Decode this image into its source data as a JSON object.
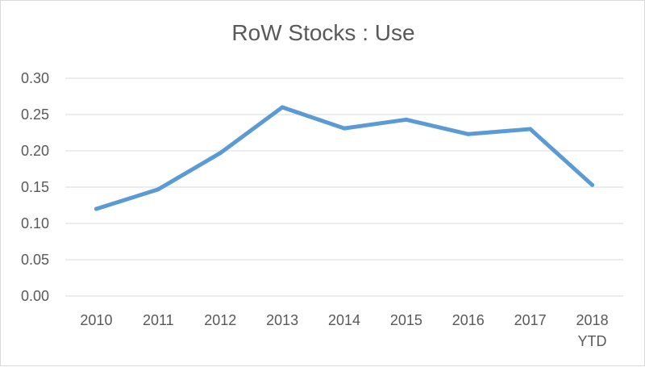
{
  "chart_data": {
    "type": "line",
    "title": "RoW Stocks : Use",
    "categories": [
      "2010",
      "2011",
      "2012",
      "2013",
      "2014",
      "2015",
      "2016",
      "2017",
      "2018\nYTD"
    ],
    "series": [
      {
        "values": [
          0.12,
          0.147,
          0.197,
          0.26,
          0.231,
          0.243,
          0.223,
          0.23,
          0.153
        ]
      }
    ],
    "yticks": [
      "0.00",
      "0.05",
      "0.10",
      "0.15",
      "0.20",
      "0.25",
      "0.30"
    ],
    "ylim": [
      0,
      0.3
    ],
    "grid": true,
    "legend": "none",
    "colors": {
      "series": "#5b9bd5",
      "grid": "#d9d9d9",
      "text": "#595959"
    }
  }
}
